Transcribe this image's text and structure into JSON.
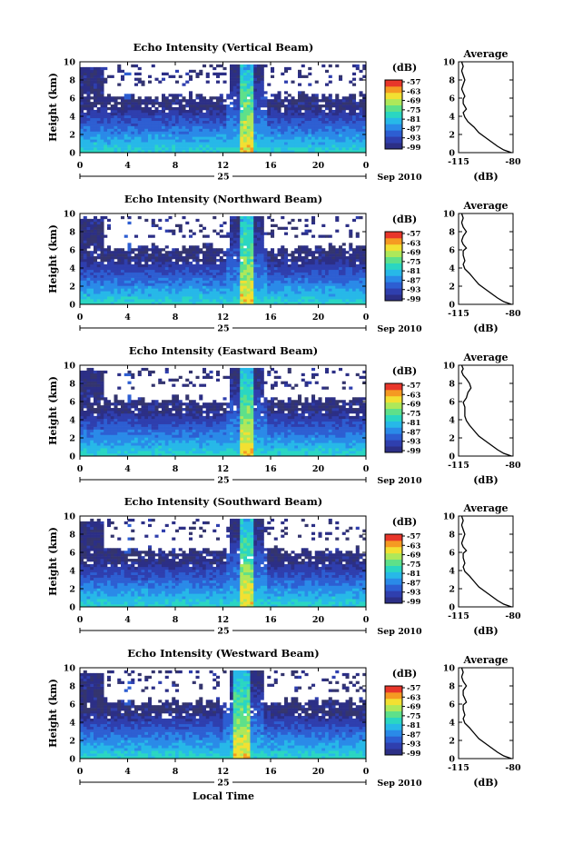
{
  "figure": {
    "xlabel": "Local Time",
    "date_label": "Sep 2010",
    "day_label": "25",
    "colorbar_unit": "(dB)",
    "average_title": "Average",
    "average_xlabel": "(dB)"
  },
  "chart_data": [
    {
      "type": "heatmap",
      "title": "Echo Intensity (Vertical Beam)",
      "ylabel": "Height (km)",
      "xticks": [
        "0",
        "4",
        "8",
        "12",
        "16",
        "20",
        "0"
      ],
      "yticks": [
        "0",
        "2",
        "4",
        "6",
        "8",
        "10"
      ],
      "xlim": [
        0,
        24
      ],
      "ylim": [
        0,
        10
      ],
      "colorbar": {
        "unit": "(dB)",
        "ticks": [
          "-57",
          "-63",
          "-69",
          "-75",
          "-81",
          "-87",
          "-93",
          "-99"
        ]
      },
      "average_profile": {
        "title": "Average",
        "xlabel": "(dB)",
        "xticks": [
          "-115",
          "-80"
        ],
        "xlim": [
          -115,
          -80
        ],
        "yticks": [
          "0",
          "2",
          "4",
          "6",
          "8",
          "10"
        ],
        "x": [
          -81,
          -86,
          -90,
          -94,
          -98,
          -102,
          -105,
          -109,
          -111,
          -112,
          -110,
          -112,
          -112,
          -111,
          -112,
          -113,
          -112,
          -111,
          -112,
          -113,
          -112,
          -113
        ],
        "y": [
          0,
          0.3,
          0.7,
          1.2,
          1.7,
          2.2,
          2.8,
          3.4,
          3.9,
          4.4,
          4.8,
          5.4,
          5.9,
          6.2,
          6.6,
          7.0,
          7.5,
          8.0,
          8.5,
          9.0,
          9.5,
          10
        ]
      }
    },
    {
      "type": "heatmap",
      "title": "Echo Intensity (Northward Beam)",
      "ylabel": "Height (km)",
      "xticks": [
        "0",
        "4",
        "8",
        "12",
        "16",
        "20",
        "0"
      ],
      "yticks": [
        "0",
        "2",
        "4",
        "6",
        "8",
        "10"
      ],
      "xlim": [
        0,
        24
      ],
      "ylim": [
        0,
        10
      ],
      "colorbar": {
        "unit": "(dB)",
        "ticks": [
          "-57",
          "-63",
          "-69",
          "-75",
          "-81",
          "-87",
          "-93",
          "-99"
        ]
      },
      "average_profile": {
        "title": "Average",
        "xlabel": "(dB)",
        "xticks": [
          "-115",
          "-80"
        ],
        "xlim": [
          -115,
          -80
        ],
        "yticks": [
          "0",
          "2",
          "4",
          "6",
          "8",
          "10"
        ],
        "x": [
          -81,
          -86,
          -90,
          -94,
          -98,
          -102,
          -105,
          -108,
          -111,
          -112,
          -111,
          -112,
          -112,
          -110,
          -112,
          -113,
          -112,
          -110,
          -112,
          -113,
          -112,
          -113
        ],
        "y": [
          0,
          0.3,
          0.7,
          1.2,
          1.7,
          2.2,
          2.8,
          3.4,
          3.9,
          4.4,
          4.8,
          5.4,
          5.9,
          6.2,
          6.6,
          7.0,
          7.5,
          8.0,
          8.5,
          9.0,
          9.5,
          10
        ]
      }
    },
    {
      "type": "heatmap",
      "title": "Echo Intensity (Eastward Beam)",
      "ylabel": "Height (km)",
      "xticks": [
        "0",
        "4",
        "8",
        "12",
        "16",
        "20",
        "0"
      ],
      "yticks": [
        "0",
        "2",
        "4",
        "6",
        "8",
        "10"
      ],
      "xlim": [
        0,
        24
      ],
      "ylim": [
        0,
        10
      ],
      "colorbar": {
        "unit": "(dB)",
        "ticks": [
          "-57",
          "-63",
          "-69",
          "-75",
          "-81",
          "-87",
          "-93",
          "-99"
        ]
      },
      "average_profile": {
        "title": "Average",
        "xlabel": "(dB)",
        "xticks": [
          "-115",
          "-80"
        ],
        "xlim": [
          -115,
          -80
        ],
        "yticks": [
          "0",
          "2",
          "4",
          "6",
          "8",
          "10"
        ],
        "x": [
          -81,
          -86,
          -90,
          -94,
          -98,
          -102,
          -105,
          -108,
          -110,
          -111,
          -111,
          -111,
          -112,
          -110,
          -109,
          -107,
          -108,
          -110,
          -112,
          -113,
          -112,
          -113
        ],
        "y": [
          0,
          0.3,
          0.7,
          1.2,
          1.7,
          2.2,
          2.8,
          3.4,
          3.9,
          4.4,
          4.8,
          5.4,
          5.9,
          6.4,
          7.0,
          7.5,
          8.0,
          8.5,
          8.9,
          9.3,
          9.6,
          10
        ]
      }
    },
    {
      "type": "heatmap",
      "title": "Echo Intensity (Southward Beam)",
      "ylabel": "Height (km)",
      "xticks": [
        "0",
        "4",
        "8",
        "12",
        "16",
        "20",
        "0"
      ],
      "yticks": [
        "0",
        "2",
        "4",
        "6",
        "8",
        "10"
      ],
      "xlim": [
        0,
        24
      ],
      "ylim": [
        0,
        10
      ],
      "colorbar": {
        "unit": "(dB)",
        "ticks": [
          "-57",
          "-63",
          "-69",
          "-75",
          "-81",
          "-87",
          "-93",
          "-99"
        ]
      },
      "average_profile": {
        "title": "Average",
        "xlabel": "(dB)",
        "xticks": [
          "-115",
          "-80"
        ],
        "xlim": [
          -115,
          -80
        ],
        "yticks": [
          "0",
          "2",
          "4",
          "6",
          "8",
          "10"
        ],
        "x": [
          -81,
          -86,
          -90,
          -94,
          -98,
          -102,
          -105,
          -108,
          -111,
          -112,
          -111,
          -112,
          -112,
          -110,
          -112,
          -113,
          -112,
          -111,
          -112,
          -113,
          -112,
          -113
        ],
        "y": [
          0,
          0.3,
          0.7,
          1.2,
          1.7,
          2.2,
          2.8,
          3.4,
          3.9,
          4.4,
          4.8,
          5.4,
          5.9,
          6.2,
          6.6,
          7.0,
          7.5,
          8.0,
          8.5,
          9.0,
          9.5,
          10
        ]
      }
    },
    {
      "type": "heatmap",
      "title": "Echo Intensity (Westward Beam)",
      "ylabel": "Height (km)",
      "xticks": [
        "0",
        "4",
        "8",
        "12",
        "16",
        "20",
        "0"
      ],
      "yticks": [
        "0",
        "2",
        "4",
        "6",
        "8",
        "10"
      ],
      "xlim": [
        0,
        24
      ],
      "ylim": [
        0,
        10
      ],
      "colorbar": {
        "unit": "(dB)",
        "ticks": [
          "-57",
          "-63",
          "-69",
          "-75",
          "-81",
          "-87",
          "-93",
          "-99"
        ]
      },
      "average_profile": {
        "title": "Average",
        "xlabel": "(dB)",
        "xticks": [
          "-115",
          "-80"
        ],
        "xlim": [
          -115,
          -80
        ],
        "yticks": [
          "0",
          "2",
          "4",
          "6",
          "8",
          "10"
        ],
        "x": [
          -81,
          -86,
          -90,
          -94,
          -98,
          -102,
          -105,
          -108,
          -111,
          -112,
          -111,
          -112,
          -112,
          -110,
          -111,
          -112,
          -112,
          -110,
          -112,
          -113,
          -112,
          -113
        ],
        "y": [
          0,
          0.3,
          0.7,
          1.2,
          1.7,
          2.2,
          2.8,
          3.4,
          3.9,
          4.4,
          4.8,
          5.4,
          5.9,
          6.2,
          6.6,
          7.0,
          7.5,
          8.0,
          8.5,
          9.0,
          9.5,
          10
        ]
      }
    }
  ],
  "colors": {
    "background": "#ffffff",
    "axis": "#000000",
    "low_echo": "#34356e",
    "colormap": [
      "#2c2f86",
      "#2f3fae",
      "#2d5ed2",
      "#2a8ae8",
      "#27b8e8",
      "#2ad6c2",
      "#5ee08a",
      "#aee85a",
      "#f2e032",
      "#f59a22",
      "#e8362a"
    ]
  }
}
